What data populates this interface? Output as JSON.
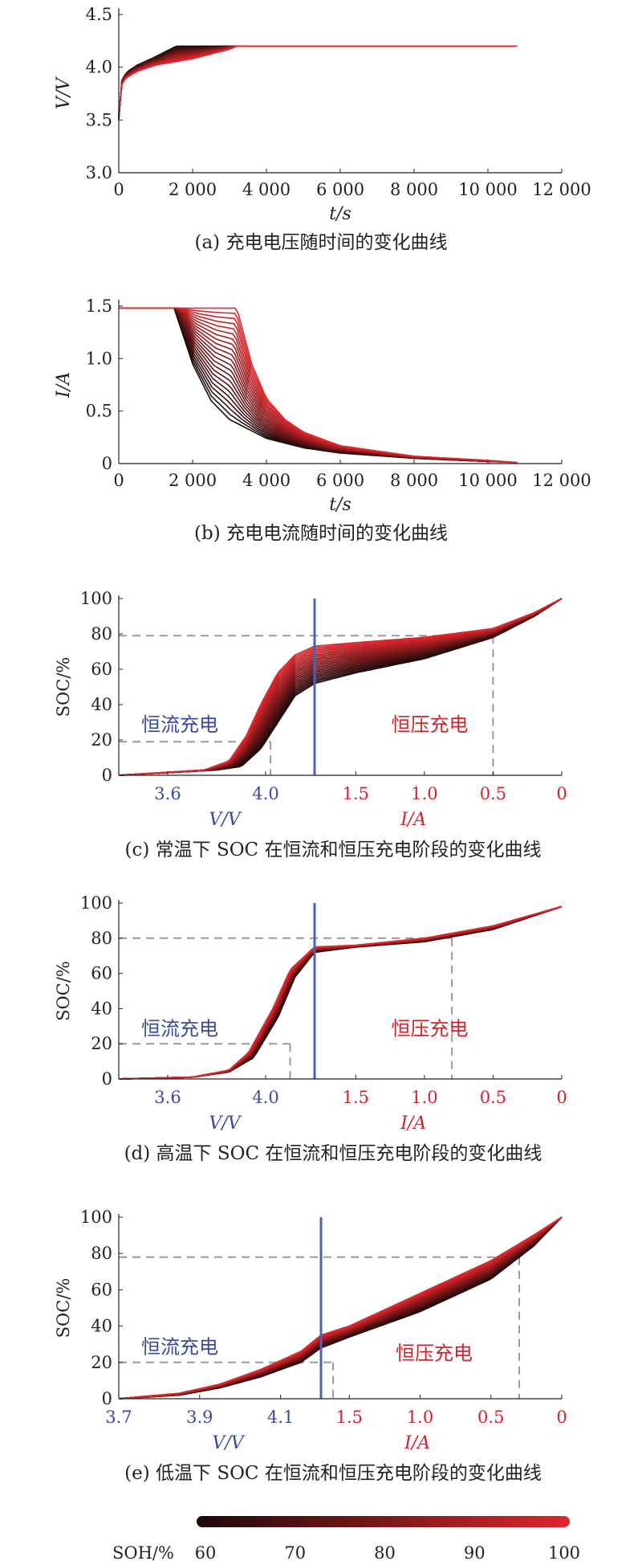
{
  "colors": {
    "soh_low": "#1a0a0a",
    "soh_high": "#e0262b",
    "cc_line": "#4a63b8",
    "cc_text": "#3a4a9a",
    "cv_text": "#d8202a",
    "guide": "#999999",
    "axis": "#222222"
  },
  "colorbar": {
    "label": "SOH/%",
    "ticks": [
      "60",
      "70",
      "80",
      "90",
      "100"
    ]
  },
  "chart_data": [
    {
      "id": "a",
      "type": "line",
      "caption": "(a) 充电电压随时间的变化曲线",
      "ylabel": "V/V",
      "xlabel": "t/s",
      "ylim": [
        3.0,
        4.5
      ],
      "xlim": [
        0,
        12000
      ],
      "yticks": [
        "3.0",
        "3.5",
        "4.0",
        "4.5"
      ],
      "xticks": [
        "0",
        "2 000",
        "4 000",
        "6 000",
        "8 000",
        "10 000",
        "12 000"
      ],
      "series": [
        {
          "soh": 60,
          "x": [
            0,
            50,
            200,
            500,
            1000,
            1500,
            1550,
            10000
          ],
          "y": [
            3.5,
            3.85,
            3.95,
            4.02,
            4.1,
            4.19,
            4.2,
            4.2
          ]
        },
        {
          "soh": 100,
          "x": [
            0,
            50,
            200,
            500,
            1000,
            2000,
            3000,
            3200,
            10800
          ],
          "y": [
            3.58,
            3.82,
            3.9,
            3.96,
            4.02,
            4.08,
            4.17,
            4.2,
            4.2
          ]
        }
      ]
    },
    {
      "id": "b",
      "type": "line",
      "caption": "(b) 充电电流随时间的变化曲线",
      "ylabel": "I/A",
      "xlabel": "t/s",
      "ylim": [
        0,
        1.5
      ],
      "xlim": [
        0,
        12000
      ],
      "yticks": [
        "0",
        "0.5",
        "1.0",
        "1.5"
      ],
      "xticks": [
        "0",
        "2 000",
        "4 000",
        "6 000",
        "8 000",
        "10 000",
        "12 000"
      ],
      "series": [
        {
          "soh": 60,
          "x": [
            0,
            1500,
            2000,
            2500,
            3000,
            4000,
            5000,
            6000,
            8000,
            10000
          ],
          "y": [
            1.48,
            1.48,
            0.95,
            0.6,
            0.42,
            0.24,
            0.15,
            0.1,
            0.05,
            0.02
          ]
        },
        {
          "soh": 100,
          "x": [
            0,
            3200,
            3600,
            4000,
            4500,
            5000,
            6000,
            8000,
            10000,
            10800
          ],
          "y": [
            1.48,
            1.48,
            0.95,
            0.62,
            0.42,
            0.3,
            0.17,
            0.07,
            0.03,
            0.01
          ]
        }
      ]
    },
    {
      "id": "c",
      "type": "line",
      "caption": "(c) 常温下 SOC 在恒流和恒压充电阶段的变化曲线",
      "ylabel": "SOC/%",
      "ylim": [
        0,
        100
      ],
      "yticks": [
        "0",
        "20",
        "40",
        "60",
        "80",
        "100"
      ],
      "voltage_axis": {
        "label": "V/V",
        "ticks": [
          3.6,
          4.0
        ],
        "range": [
          3.4,
          4.2
        ]
      },
      "current_axis": {
        "label": "I/A",
        "ticks": [
          1.5,
          1.0,
          0.5,
          0
        ],
        "range": [
          1.8,
          0
        ]
      },
      "cc_label": "恒流充电",
      "cv_label": "恒压充电",
      "guides": {
        "cc_soc": 19,
        "cc_v": 4.02,
        "cv_soc": 79,
        "cv_i": 0.5
      },
      "series": [
        {
          "soh": 60,
          "cc": [
            [
              3.4,
              0
            ],
            [
              3.8,
              3
            ],
            [
              3.9,
              5
            ],
            [
              3.98,
              15
            ],
            [
              4.05,
              30
            ],
            [
              4.12,
              45
            ],
            [
              4.2,
              52
            ]
          ],
          "cv": [
            [
              1.8,
              52
            ],
            [
              1.5,
              58
            ],
            [
              1.0,
              66
            ],
            [
              0.5,
              78
            ],
            [
              0.2,
              90
            ],
            [
              0,
              100
            ]
          ]
        },
        {
          "soh": 100,
          "cc": [
            [
              3.4,
              0
            ],
            [
              3.75,
              3
            ],
            [
              3.85,
              8
            ],
            [
              3.92,
              22
            ],
            [
              3.98,
              40
            ],
            [
              4.05,
              58
            ],
            [
              4.12,
              68
            ],
            [
              4.2,
              73
            ]
          ],
          "cv": [
            [
              1.8,
              73
            ],
            [
              1.5,
              75
            ],
            [
              1.0,
              78
            ],
            [
              0.5,
              83
            ],
            [
              0.2,
              92
            ],
            [
              0,
              100
            ]
          ]
        }
      ]
    },
    {
      "id": "d",
      "type": "line",
      "caption": "(d) 高温下 SOC 在恒流和恒压充电阶段的变化曲线",
      "ylabel": "SOC/%",
      "ylim": [
        0,
        100
      ],
      "yticks": [
        "0",
        "20",
        "40",
        "60",
        "80",
        "100"
      ],
      "voltage_axis": {
        "label": "V/V",
        "ticks": [
          3.6,
          4.0
        ],
        "range": [
          3.4,
          4.2
        ]
      },
      "current_axis": {
        "label": "I/A",
        "ticks": [
          1.5,
          1.0,
          0.5,
          0
        ],
        "range": [
          1.8,
          0
        ]
      },
      "cc_label": "恒流充电",
      "cv_label": "恒压充电",
      "guides": {
        "cc_soc": 20,
        "cc_v": 4.1,
        "cv_soc": 80,
        "cv_i": 0.8
      },
      "series": [
        {
          "soh": 60,
          "cc": [
            [
              3.4,
              0
            ],
            [
              3.7,
              1
            ],
            [
              3.85,
              4
            ],
            [
              3.95,
              12
            ],
            [
              4.05,
              35
            ],
            [
              4.12,
              58
            ],
            [
              4.2,
              72
            ]
          ],
          "cv": [
            [
              1.8,
              72
            ],
            [
              1.5,
              75
            ],
            [
              1.0,
              78
            ],
            [
              0.5,
              85
            ],
            [
              0,
              98
            ]
          ]
        },
        {
          "soh": 100,
          "cc": [
            [
              3.4,
              0
            ],
            [
              3.7,
              1
            ],
            [
              3.85,
              5
            ],
            [
              3.93,
              15
            ],
            [
              4.03,
              40
            ],
            [
              4.1,
              62
            ],
            [
              4.2,
              75
            ]
          ],
          "cv": [
            [
              1.8,
              75
            ],
            [
              1.5,
              76
            ],
            [
              1.0,
              80
            ],
            [
              0.5,
              87
            ],
            [
              0,
              98
            ]
          ]
        }
      ]
    },
    {
      "id": "e",
      "type": "line",
      "caption": "(e) 低温下 SOC 在恒流和恒压充电阶段的变化曲线",
      "ylabel": "SOC/%",
      "ylim": [
        0,
        100
      ],
      "yticks": [
        "0",
        "20",
        "40",
        "60",
        "80",
        "100"
      ],
      "voltage_axis": {
        "label": "V/V",
        "ticks": [
          3.7,
          3.9,
          4.1
        ],
        "range": [
          3.7,
          4.2
        ]
      },
      "current_axis": {
        "label": "I/A",
        "ticks": [
          1.5,
          1.0,
          0.5,
          0
        ],
        "range": [
          1.7,
          0
        ]
      },
      "cc_label": "恒流充电",
      "cv_label": "恒压充电",
      "guides": {
        "cc_soc": 20,
        "cc_v": 4.23,
        "cv_soc": 78,
        "cv_i": 0.3
      },
      "series": [
        {
          "soh": 60,
          "cc": [
            [
              3.7,
              0
            ],
            [
              3.85,
              2
            ],
            [
              3.95,
              6
            ],
            [
              4.05,
              12
            ],
            [
              4.15,
              20
            ],
            [
              4.2,
              28
            ]
          ],
          "cv": [
            [
              1.7,
              28
            ],
            [
              1.5,
              34
            ],
            [
              1.0,
              48
            ],
            [
              0.5,
              66
            ],
            [
              0.2,
              84
            ],
            [
              0,
              100
            ]
          ]
        },
        {
          "soh": 100,
          "cc": [
            [
              3.7,
              0
            ],
            [
              3.85,
              3
            ],
            [
              3.95,
              8
            ],
            [
              4.05,
              16
            ],
            [
              4.15,
              26
            ],
            [
              4.2,
              35
            ]
          ],
          "cv": [
            [
              1.7,
              35
            ],
            [
              1.5,
              40
            ],
            [
              1.0,
              58
            ],
            [
              0.5,
              76
            ],
            [
              0.2,
              90
            ],
            [
              0,
              100
            ]
          ]
        }
      ]
    }
  ]
}
